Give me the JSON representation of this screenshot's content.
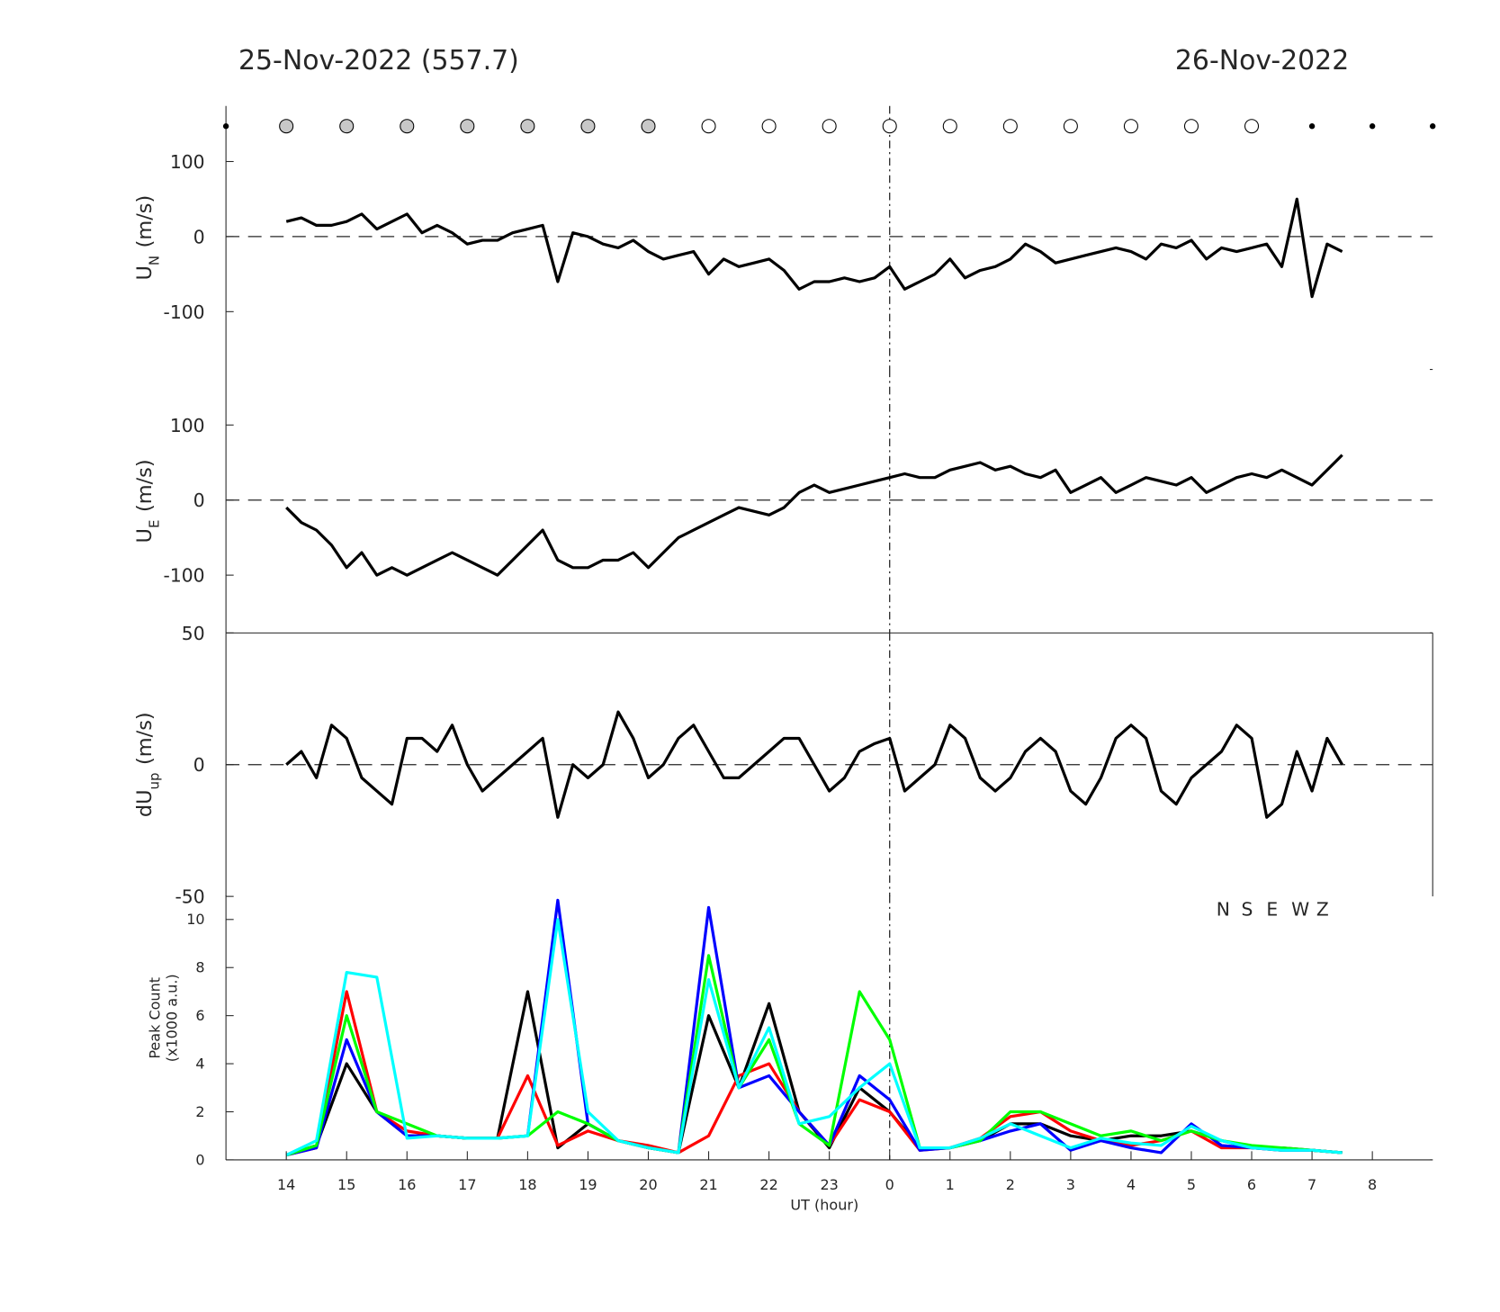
{
  "titles": [
    "25-Nov-2022 (557.7)",
    "26-Nov-2022"
  ],
  "chart_data": [
    {
      "type": "line",
      "ylabel": {
        "main": "U",
        "sub": "N",
        "unit": "(m/s)"
      },
      "xlim": [
        13,
        33
      ],
      "ylim": [
        -177,
        174
      ],
      "yticks": [
        -100,
        0,
        100
      ],
      "hline": 0,
      "vline": 24,
      "color": "#000000",
      "markers": {
        "x": [
          13,
          14,
          15,
          16,
          17,
          18,
          19,
          20,
          21,
          22,
          23,
          24,
          25,
          26,
          27,
          28,
          29,
          30,
          31,
          32,
          33
        ],
        "fill": [
          "#000000",
          "#c8c8c8",
          "#c8c8c8",
          "#c8c8c8",
          "#c8c8c8",
          "#c8c8c8",
          "#c8c8c8",
          "#c8c8c8",
          "#ffffff",
          "#ffffff",
          "#ffffff",
          "#ffffff",
          "#ffffff",
          "#ffffff",
          "#ffffff",
          "#ffffff",
          "#ffffff",
          "#ffffff",
          "#000000",
          "#000000",
          "#000000"
        ]
      },
      "x": [
        14,
        14.25,
        14.5,
        14.75,
        15,
        15.25,
        15.5,
        15.75,
        16,
        16.25,
        16.5,
        16.75,
        17,
        17.25,
        17.5,
        17.75,
        18,
        18.25,
        18.5,
        18.75,
        19,
        19.25,
        19.5,
        19.75,
        20,
        20.25,
        20.5,
        20.75,
        21,
        21.25,
        21.5,
        21.75,
        22,
        22.25,
        22.5,
        22.75,
        23,
        23.25,
        23.5,
        23.75,
        24,
        24.25,
        24.5,
        24.75,
        25,
        25.25,
        25.5,
        25.75,
        26,
        26.25,
        26.5,
        26.75,
        27,
        27.25,
        27.5,
        27.75,
        28,
        28.25,
        28.5,
        28.75,
        29,
        29.25,
        29.5,
        29.75,
        30,
        30.25,
        30.5,
        30.75,
        31,
        31.25,
        31.5
      ],
      "values": [
        20,
        25,
        15,
        15,
        20,
        30,
        10,
        20,
        30,
        5,
        15,
        5,
        -10,
        -5,
        -5,
        5,
        10,
        15,
        -60,
        5,
        0,
        -10,
        -15,
        -5,
        -20,
        -30,
        -25,
        -20,
        -50,
        -30,
        -40,
        -35,
        -30,
        -45,
        -70,
        -60,
        -60,
        -55,
        -60,
        -55,
        -40,
        -70,
        -60,
        -50,
        -30,
        -55,
        -45,
        -40,
        -30,
        -10,
        -20,
        -35,
        -30,
        -25,
        -20,
        -15,
        -20,
        -30,
        -10,
        -15,
        -5,
        -30,
        -15,
        -20,
        -15,
        -10,
        -40,
        50,
        -80,
        -10,
        -20
      ]
    },
    {
      "type": "line",
      "ylabel": {
        "main": "U",
        "sub": "E",
        "unit": "(m/s)"
      },
      "xlim": [
        13,
        33
      ],
      "ylim": [
        -177,
        174
      ],
      "yticks": [
        -100,
        0,
        100
      ],
      "hline": 0,
      "vline": 24,
      "color": "#000000",
      "x": [
        14,
        14.25,
        14.5,
        14.75,
        15,
        15.25,
        15.5,
        15.75,
        16,
        16.25,
        16.5,
        16.75,
        17,
        17.25,
        17.5,
        17.75,
        18,
        18.25,
        18.5,
        18.75,
        19,
        19.25,
        19.5,
        19.75,
        20,
        20.25,
        20.5,
        20.75,
        21,
        21.25,
        21.5,
        21.75,
        22,
        22.25,
        22.5,
        22.75,
        23,
        23.25,
        23.5,
        23.75,
        24,
        24.25,
        24.5,
        24.75,
        25,
        25.25,
        25.5,
        25.75,
        26,
        26.25,
        26.5,
        26.75,
        27,
        27.25,
        27.5,
        27.75,
        28,
        28.25,
        28.5,
        28.75,
        29,
        29.25,
        29.5,
        29.75,
        30,
        30.25,
        30.5,
        30.75,
        31,
        31.25,
        31.5
      ],
      "values": [
        -10,
        -30,
        -40,
        -60,
        -90,
        -70,
        -100,
        -90,
        -100,
        -90,
        -80,
        -70,
        -80,
        -90,
        -100,
        -80,
        -60,
        -40,
        -80,
        -90,
        -90,
        -80,
        -80,
        -70,
        -90,
        -70,
        -50,
        -40,
        -30,
        -20,
        -10,
        -15,
        -20,
        -10,
        10,
        20,
        10,
        15,
        20,
        25,
        30,
        35,
        30,
        30,
        40,
        45,
        50,
        40,
        45,
        35,
        30,
        40,
        10,
        20,
        30,
        10,
        20,
        30,
        25,
        20,
        30,
        10,
        20,
        30,
        35,
        30,
        40,
        30,
        20,
        40,
        60
      ]
    },
    {
      "type": "line",
      "ylabel": {
        "main": "dU",
        "sub": "up",
        "unit": "(m/s)"
      },
      "xlim": [
        13,
        33
      ],
      "ylim": [
        -50,
        50
      ],
      "yticks": [
        -50,
        0,
        50
      ],
      "hline": 0,
      "vline": 24,
      "color": "#000000",
      "x": [
        14,
        14.25,
        14.5,
        14.75,
        15,
        15.25,
        15.5,
        15.75,
        16,
        16.25,
        16.5,
        16.75,
        17,
        17.25,
        17.5,
        17.75,
        18,
        18.25,
        18.5,
        18.75,
        19,
        19.25,
        19.5,
        19.75,
        20,
        20.25,
        20.5,
        20.75,
        21,
        21.25,
        21.5,
        21.75,
        22,
        22.25,
        22.5,
        22.75,
        23,
        23.25,
        23.5,
        23.75,
        24,
        24.25,
        24.5,
        24.75,
        25,
        25.25,
        25.5,
        25.75,
        26,
        26.25,
        26.5,
        26.75,
        27,
        27.25,
        27.5,
        27.75,
        28,
        28.25,
        28.5,
        28.75,
        29,
        29.25,
        29.5,
        29.75,
        30,
        30.25,
        30.5,
        30.75,
        31,
        31.25,
        31.5
      ],
      "values": [
        0,
        5,
        -5,
        15,
        10,
        -5,
        -10,
        -15,
        10,
        10,
        5,
        15,
        0,
        -10,
        -5,
        0,
        5,
        10,
        -20,
        0,
        -5,
        0,
        20,
        10,
        -5,
        0,
        10,
        15,
        5,
        -5,
        -5,
        0,
        5,
        10,
        10,
        0,
        -10,
        -5,
        5,
        8,
        10,
        -10,
        -5,
        0,
        15,
        10,
        -5,
        -10,
        -5,
        5,
        10,
        5,
        -10,
        -15,
        -5,
        10,
        15,
        10,
        -10,
        -15,
        -5,
        0,
        5,
        15,
        10,
        -20,
        -15,
        5,
        -10,
        10,
        0
      ]
    },
    {
      "type": "line",
      "ylabel": [
        "Peak Count",
        "(x1000 a.u.)"
      ],
      "xlabel": "UT (hour)",
      "xlim": [
        13,
        33
      ],
      "ylim": [
        0,
        11
      ],
      "yticks": [
        0,
        2,
        4,
        6,
        8,
        10
      ],
      "vline": 24,
      "xticks": [
        14,
        15,
        16,
        17,
        18,
        19,
        20,
        21,
        22,
        23,
        {
          "value": 24,
          "label": "0"
        },
        {
          "value": 25,
          "label": "1"
        },
        {
          "value": 26,
          "label": "2"
        },
        {
          "value": 27,
          "label": "3"
        },
        {
          "value": 28,
          "label": "4"
        },
        {
          "value": 29,
          "label": "5"
        },
        {
          "value": 30,
          "label": "6"
        },
        {
          "value": 31,
          "label": "7"
        },
        {
          "value": 32,
          "label": "8"
        }
      ],
      "x": [
        14,
        14.5,
        15,
        15.5,
        16,
        16.5,
        17,
        17.5,
        18,
        18.5,
        19,
        19.5,
        20,
        20.5,
        21,
        21.5,
        22,
        22.5,
        23,
        23.5,
        24,
        24.5,
        25,
        25.5,
        26,
        26.5,
        27,
        27.5,
        28,
        28.5,
        29,
        29.5,
        30,
        30.5,
        31,
        31.5
      ],
      "series": [
        {
          "name": "N",
          "color": "#000000",
          "values": [
            0.2,
            0.6,
            4,
            2,
            1.0,
            1,
            0.9,
            0.9,
            7,
            0.5,
            1.5,
            0.8,
            0.5,
            0.3,
            6,
            3,
            6.5,
            2,
            0.5,
            3,
            2,
            0.5,
            0.5,
            0.8,
            1.5,
            1.5,
            1,
            0.8,
            1,
            1,
            1.2,
            0.8,
            0.5,
            0.5,
            0.4,
            0.3
          ]
        },
        {
          "name": "S",
          "color": "#ff0000",
          "values": [
            0.2,
            0.5,
            7,
            2,
            1.2,
            1,
            0.9,
            0.9,
            3.5,
            0.6,
            1.2,
            0.8,
            0.6,
            0.3,
            1,
            3.5,
            4,
            2,
            0.6,
            2.5,
            2,
            0.4,
            0.5,
            0.9,
            1.8,
            2,
            1.2,
            0.8,
            0.6,
            0.8,
            1.2,
            0.5,
            0.5,
            0.4,
            0.4,
            0.3
          ]
        },
        {
          "name": "E",
          "color": "#0000ff",
          "values": [
            0.2,
            0.5,
            5,
            2,
            1,
            1,
            0.9,
            0.9,
            1,
            10.8,
            1.5,
            0.8,
            0.5,
            0.3,
            10.5,
            3,
            3.5,
            2,
            0.6,
            3.5,
            2.5,
            0.4,
            0.5,
            0.8,
            1.2,
            1.5,
            0.4,
            0.8,
            0.5,
            0.3,
            1.5,
            0.6,
            0.5,
            0.4,
            0.4,
            0.3
          ]
        },
        {
          "name": "W",
          "color": "#00ff00",
          "values": [
            0.2,
            0.6,
            6,
            2,
            1.5,
            1,
            0.9,
            0.9,
            1,
            2,
            1.5,
            0.8,
            0.5,
            0.3,
            8.5,
            3,
            5,
            1.5,
            0.6,
            7,
            5,
            0.5,
            0.5,
            0.8,
            2,
            2,
            1.5,
            1,
            1.2,
            0.8,
            1.2,
            0.8,
            0.6,
            0.5,
            0.4,
            0.3
          ]
        },
        {
          "name": "Z",
          "color": "#00ffff",
          "values": [
            0.2,
            0.8,
            7.8,
            7.6,
            0.9,
            1,
            0.9,
            0.9,
            1,
            10,
            2,
            0.8,
            0.5,
            0.3,
            7.5,
            3,
            5.5,
            1.5,
            1.8,
            3,
            4,
            0.5,
            0.5,
            0.9,
            1.5,
            1,
            0.5,
            0.9,
            0.7,
            0.6,
            1.4,
            0.8,
            0.5,
            0.4,
            0.4,
            0.3
          ]
        }
      ]
    }
  ]
}
